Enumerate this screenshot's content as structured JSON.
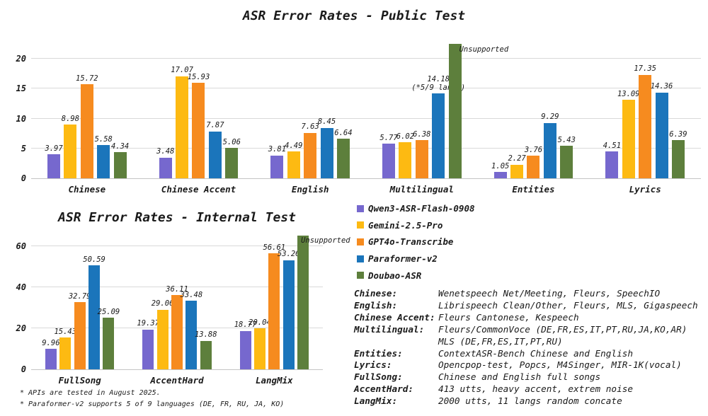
{
  "chart_data": [
    {
      "id": "public",
      "type": "bar",
      "title": "ASR Error Rates - Public Test",
      "xlabel": "",
      "ylabel": "",
      "ylim": [
        0,
        22.5
      ],
      "yticks": [
        0,
        5,
        10,
        15,
        20
      ],
      "grid": true,
      "legend_position": "below-right",
      "categories": [
        "Chinese",
        "Chinese Accent",
        "English",
        "Multilingual",
        "Entities",
        "Lyrics"
      ],
      "series": [
        {
          "name": "Qwen3-ASR-Flash-0908",
          "color": "#7668CE",
          "values": [
            3.97,
            3.48,
            3.81,
            5.77,
            1.05,
            4.51
          ]
        },
        {
          "name": "Gemini-2.5-Pro",
          "color": "#FDBA12",
          "values": [
            8.98,
            17.07,
            4.49,
            6.02,
            2.27,
            13.09
          ]
        },
        {
          "name": "GPT4o-Transcribe",
          "color": "#F68B1F",
          "values": [
            15.72,
            15.93,
            7.63,
            6.38,
            3.76,
            17.35
          ]
        },
        {
          "name": "Paraformer-v2",
          "color": "#1B75BB",
          "values": [
            5.58,
            7.87,
            8.45,
            14.18,
            9.29,
            14.36
          ],
          "annotations": {
            "3": "(*5/9 langs)"
          }
        },
        {
          "name": "Doubao-ASR",
          "color": "#5D7F3C",
          "values": [
            4.34,
            5.06,
            6.64,
            null,
            5.43,
            6.39
          ],
          "unsupported_indices": [
            3
          ],
          "unsupported_label": "Unsupported"
        }
      ]
    },
    {
      "id": "internal",
      "type": "bar",
      "title": "ASR Error Rates - Internal Test",
      "xlabel": "",
      "ylabel": "",
      "ylim": [
        0,
        65.2
      ],
      "yticks": [
        0,
        20,
        40,
        60
      ],
      "grid": true,
      "categories": [
        "FullSong",
        "AccentHard",
        "LangMix"
      ],
      "series": [
        {
          "name": "Qwen3-ASR-Flash-0908",
          "color": "#7668CE",
          "values": [
            9.96,
            19.37,
            18.77
          ]
        },
        {
          "name": "Gemini-2.5-Pro",
          "color": "#FDBA12",
          "values": [
            15.43,
            29.06,
            20.04
          ]
        },
        {
          "name": "GPT4o-Transcribe",
          "color": "#F68B1F",
          "values": [
            32.79,
            36.11,
            56.61
          ]
        },
        {
          "name": "Paraformer-v2",
          "color": "#1B75BB",
          "values": [
            50.59,
            33.48,
            53.26
          ]
        },
        {
          "name": "Doubao-ASR",
          "color": "#5D7F3C",
          "values": [
            25.09,
            13.88,
            null
          ],
          "unsupported_indices": [
            2
          ],
          "unsupported_label": "Unsupported"
        }
      ]
    }
  ],
  "descriptions": [
    {
      "label": "Chinese:",
      "value": "Wenetspeech Net/Meeting, Fleurs, SpeechIO"
    },
    {
      "label": "English:",
      "value": "Librispeech Clean/Other, Fleurs, MLS, Gigaspeech"
    },
    {
      "label": "Chinese Accent:",
      "value": "Fleurs Cantonese, Kespeech"
    },
    {
      "label": "Multilingual:",
      "value": "Fleurs/CommonVoce (DE,FR,ES,IT,PT,RU,JA,KO,AR)\nMLS (DE,FR,ES,IT,PT,RU)"
    },
    {
      "label": "Entities:",
      "value": "ContextASR-Bench Chinese and English"
    },
    {
      "label": "Lyrics:",
      "value": "Opencpop-test, Popcs, M4Singer, MIR-1K(vocal)"
    },
    {
      "label": "FullSong:",
      "value": "Chinese and English full songs"
    },
    {
      "label": "AccentHard:",
      "value": "413 utts, heavy accent, extrem noise"
    },
    {
      "label": "LangMix:",
      "value": "2000 utts, 11 langs random concate"
    }
  ],
  "footnotes": [
    "* APIs are tested in August 2025.",
    "* Paraformer-v2 supports 5 of 9 languages (DE, FR, RU, JA, KO)"
  ]
}
